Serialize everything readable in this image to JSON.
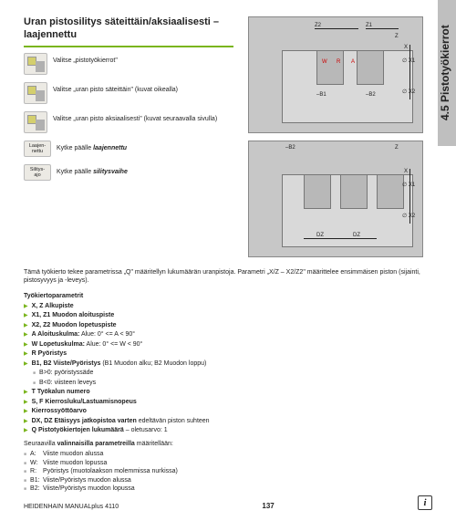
{
  "page": {
    "title_line1": "Uran pistosilitys säteittäin/aksiaalisesti –",
    "title_line2": "laajennettu",
    "side_tab": "4.5 Pistotyökierrot",
    "footer_left": "HEIDENHAIN MANUALplus 4110",
    "page_number": "137"
  },
  "selections": [
    {
      "icon_label": "",
      "text": "Valitse „pistotyökierrot\""
    },
    {
      "icon_label": "",
      "text": "Valitse „uran pisto säteittäin\" (kuvat oikealla)"
    },
    {
      "icon_label": "",
      "text": "Valitse „uran pisto aksiaalisesti\" (kuvat seuraavalla sivulla)"
    }
  ],
  "toggles": [
    {
      "label_l1": "Laajen-",
      "label_l2": "nettu",
      "text_pre": "Kytke päälle ",
      "text_em": "laajennettu"
    },
    {
      "label_l1": "Silitys-",
      "label_l2": "ajo",
      "text_pre": "Kytke päälle ",
      "text_em": "silitysvaihe"
    }
  ],
  "body_text": "Tämä työkierto tekee parametrissa „Q\" määritellyn lukumäärän uranpistoja. Parametri „X/Z – X2/Z2\" määrittelee ensimmäisen piston (sijainti, pistosyvyys ja -leveys).",
  "params_head": "Työkiertoparametrit",
  "params": [
    {
      "t": "main",
      "k": "X, Z",
      "v": "Alkupiste"
    },
    {
      "t": "main",
      "k": "X1, Z1",
      "v": "Muodon aloituspiste"
    },
    {
      "t": "main",
      "k": "X2, Z2",
      "v": "Muodon lopetuspiste"
    },
    {
      "t": "main",
      "k": "A",
      "v": "Aloituskulma:",
      "extra": "Alue: 0° <= A < 90°"
    },
    {
      "t": "main",
      "k": "W",
      "v": "Lopetuskulma:",
      "extra": "Alue: 0° <= W < 90°"
    },
    {
      "t": "main",
      "k": "R",
      "v": "Pyöristys"
    },
    {
      "t": "main",
      "k": "B1, B2",
      "v": "Viiste/Pyöristys",
      "extra": "(B1 Muodon alku; B2 Muodon loppu)"
    },
    {
      "t": "sub",
      "text": "B>0: pyöristyssäde"
    },
    {
      "t": "sub",
      "text": "B<0: viisteen leveys"
    },
    {
      "t": "main",
      "k": "T",
      "v": "Työkalun numero"
    },
    {
      "t": "main",
      "k": "S, F",
      "v": "Kierrosluku/Lastuamisnopeus"
    },
    {
      "t": "main",
      "k": "",
      "v": "Kierrossyöttöarvo"
    },
    {
      "t": "main",
      "k": "DX, DZ",
      "v": "Etäisyys jatkopistoa varten",
      "extra": "edeltävän piston suhteen"
    },
    {
      "t": "main",
      "k": "Q",
      "v": "Pistotyökiertojen lukumäärä",
      "extra": "– oletusarvo: 1"
    }
  ],
  "note": "Seuraavilla ",
  "note_bold": "valinnaisilla parametreilla",
  "note_after": " määritellään:",
  "footnotes": [
    {
      "k": "A:",
      "v": "Viiste muodon alussa"
    },
    {
      "k": "W:",
      "v": "Viiste muodon lopussa"
    },
    {
      "k": "R:",
      "v": "Pyöristys (muotolaakson molemmissa nurkissa)"
    },
    {
      "k": "B1:",
      "v": "Viiste/Pyöristys muodon alussa"
    },
    {
      "k": "B2:",
      "v": "Viiste/Pyöristys muodon lopussa"
    }
  ],
  "diagram_labels": {
    "z2": "Z2",
    "z1": "Z1",
    "z": "Z",
    "x": "X",
    "x1": "X1",
    "x2": "X2",
    "w": "W",
    "r": "R",
    "a": "A",
    "b1": "–B1",
    "b2": "–B2",
    "dz": "DZ"
  },
  "colors": {
    "accent": "#7ab51d",
    "diagram_bg": "#c7c7c7",
    "diagram_stock": "#d9d9d9",
    "diagram_groove": "#b8b8b8",
    "side_tab_bg": "#bfbfbf",
    "red": "#c00"
  }
}
